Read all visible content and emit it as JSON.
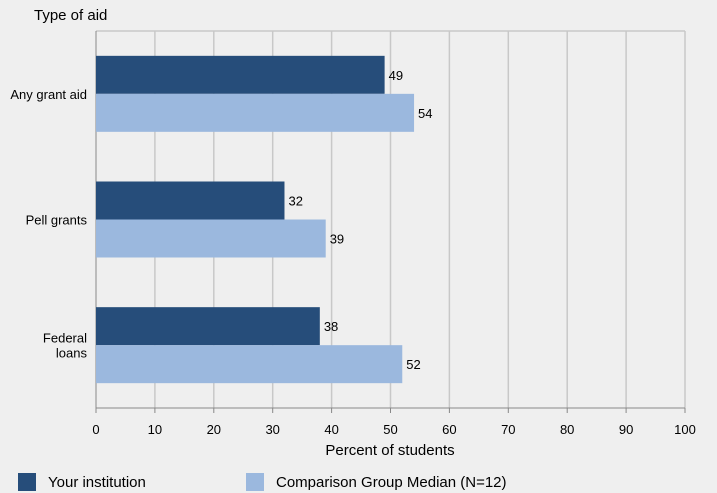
{
  "colors": {
    "background": "#efefef",
    "grid": "#c8c8c8",
    "axis": "#888888",
    "series_1": "#264d7a",
    "series_2": "#9bb8de"
  },
  "chart_data": {
    "type": "bar",
    "orientation": "horizontal",
    "ylabel": "Type of aid",
    "xlabel": "Percent of students",
    "xlim": [
      0,
      100
    ],
    "xticks": [
      "0",
      "10",
      "20",
      "30",
      "40",
      "50",
      "60",
      "70",
      "80",
      "90",
      "100"
    ],
    "grid": true,
    "legend_position": "bottom",
    "categories": [
      [
        "Any grant aid"
      ],
      [
        "Pell grants"
      ],
      [
        "Federal",
        "loans"
      ]
    ],
    "series": [
      {
        "name": "Your institution",
        "values": [
          49,
          32,
          38
        ],
        "color": "#264d7a"
      },
      {
        "name": "Comparison Group Median (N=12)",
        "values": [
          54,
          39,
          52
        ],
        "color": "#9bb8de"
      }
    ]
  }
}
